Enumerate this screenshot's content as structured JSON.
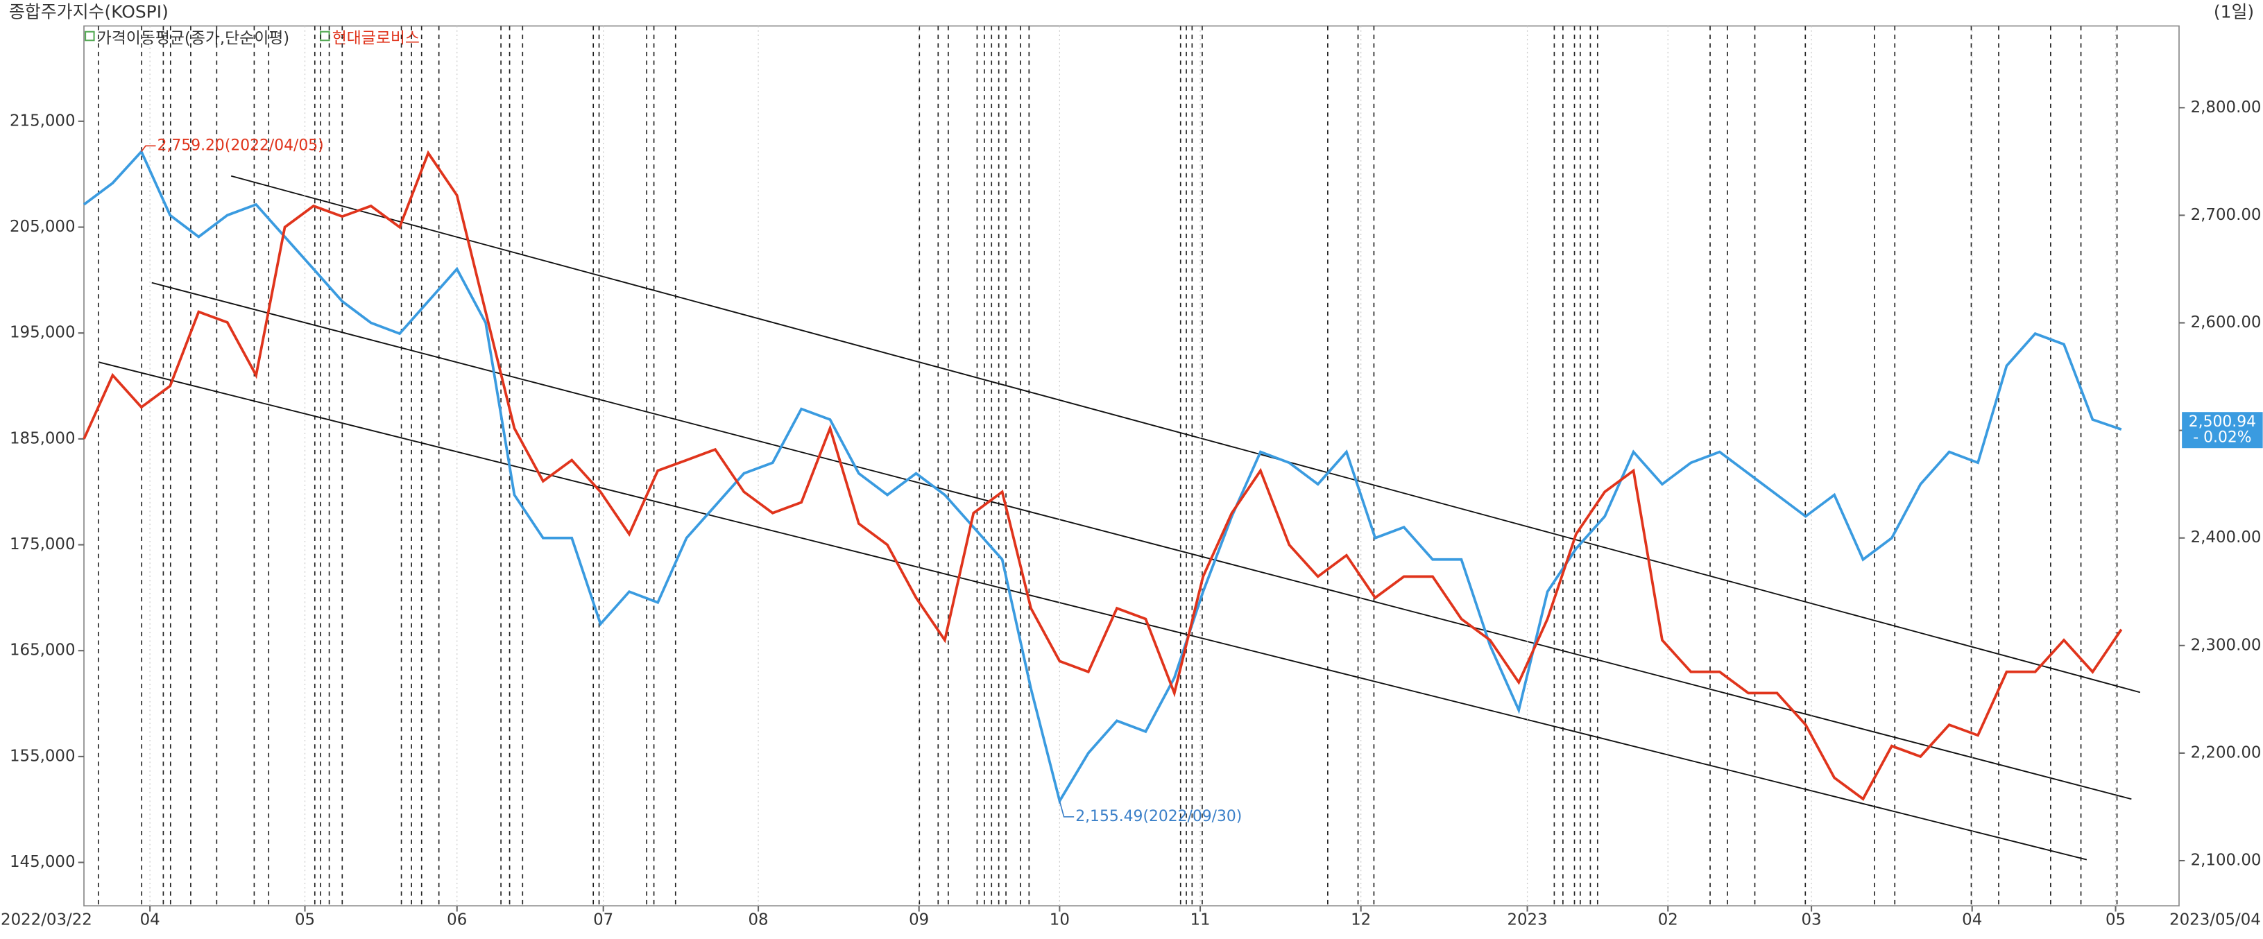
{
  "chart_data": {
    "type": "line",
    "title": "종합주가지수(KOSPI)",
    "period": "(1일)",
    "xlim": [
      0,
      71
    ],
    "xticks": [
      {
        "value": 2.3,
        "label": "04"
      },
      {
        "value": 7.7,
        "label": "05"
      },
      {
        "value": 13.0,
        "label": "06"
      },
      {
        "value": 18.1,
        "label": "07"
      },
      {
        "value": 23.5,
        "label": "08"
      },
      {
        "value": 29.1,
        "label": "09"
      },
      {
        "value": 34.0,
        "label": "10"
      },
      {
        "value": 38.9,
        "label": "11"
      },
      {
        "value": 44.5,
        "label": "12"
      },
      {
        "value": 50.3,
        "label": "2023"
      },
      {
        "value": 55.2,
        "label": "02"
      },
      {
        "value": 60.2,
        "label": "03"
      },
      {
        "value": 65.8,
        "label": "04"
      },
      {
        "value": 70.8,
        "label": "05"
      }
    ],
    "date_range": [
      "2022/03/22",
      "2023/05/04"
    ],
    "ylim": [
      140900,
      224000
    ],
    "yticks": [
      {
        "value": 145000,
        "label": "145,000"
      },
      {
        "value": 155000,
        "label": "155,000"
      },
      {
        "value": 165000,
        "label": "165,000"
      },
      {
        "value": 175000,
        "label": "175,000"
      },
      {
        "value": 185000,
        "label": "185,000"
      },
      {
        "value": 195000,
        "label": "195,000"
      },
      {
        "value": 205000,
        "label": "205,000"
      },
      {
        "value": 215000,
        "label": "215,000"
      }
    ],
    "y2lim": [
      2058,
      2876
    ],
    "y2ticks": [
      {
        "value": 2100,
        "label": "2,100.00"
      },
      {
        "value": 2200,
        "label": "2,200.00"
      },
      {
        "value": 2300,
        "label": "2,300.00"
      },
      {
        "value": 2400,
        "label": "2,400.00"
      },
      {
        "value": 2500,
        "label": "2,500.00"
      },
      {
        "value": 2600,
        "label": "2,600.00"
      },
      {
        "value": 2700,
        "label": "2,700.00"
      },
      {
        "value": 2800,
        "label": "2,800.00"
      }
    ],
    "series": [
      {
        "name": "가격이동평균(종가,단순이평)",
        "color": "#3a9be0",
        "axis": "y2",
        "values": [
          2710,
          2730,
          2759.2,
          2700,
          2680,
          2700,
          2710,
          2680,
          2650,
          2620,
          2600,
          2590,
          2620,
          2650,
          2600,
          2440,
          2400,
          2400,
          2320,
          2350,
          2340,
          2400,
          2430,
          2460,
          2470,
          2520,
          2510,
          2460,
          2440,
          2460,
          2440,
          2410,
          2380,
          2260,
          2155.49,
          2200,
          2230,
          2220,
          2270,
          2350,
          2420,
          2480,
          2470,
          2450,
          2480,
          2400,
          2410,
          2380,
          2380,
          2300,
          2240,
          2350,
          2390,
          2420,
          2480,
          2450,
          2470,
          2480,
          2460,
          2440,
          2420,
          2440,
          2380,
          2400,
          2450,
          2480,
          2470,
          2560,
          2590,
          2580,
          2510,
          2500.94
        ]
      },
      {
        "name": "현대글로비스",
        "color": "#e0341c",
        "values": [
          185000,
          191000,
          188000,
          190000,
          197000,
          196000,
          191000,
          205000,
          207000,
          206000,
          207000,
          205000,
          212000,
          208000,
          197000,
          186000,
          181000,
          183000,
          180000,
          176000,
          182000,
          183000,
          184000,
          180000,
          178000,
          179000,
          186000,
          177000,
          175000,
          170000,
          166000,
          178000,
          180000,
          169000,
          164000,
          163000,
          169000,
          168000,
          161000,
          172000,
          178000,
          182000,
          175000,
          172000,
          174000,
          170000,
          172000,
          172000,
          168000,
          166000,
          162000,
          168000,
          176000,
          180000,
          182000,
          166000,
          163000,
          163000,
          161000,
          161000,
          158000,
          153000,
          151000,
          156000,
          155000,
          158000,
          157000,
          163000,
          163000,
          166000,
          163000,
          167000
        ]
      }
    ],
    "annotations": [
      {
        "text": "2,759.20(2022/04/05)",
        "value": 2759.2
      },
      {
        "text": "2,155.49(2022/09/30)",
        "value": 2155.49
      }
    ],
    "current": {
      "label": "2,500.94",
      "change": "- 0.02%"
    }
  }
}
